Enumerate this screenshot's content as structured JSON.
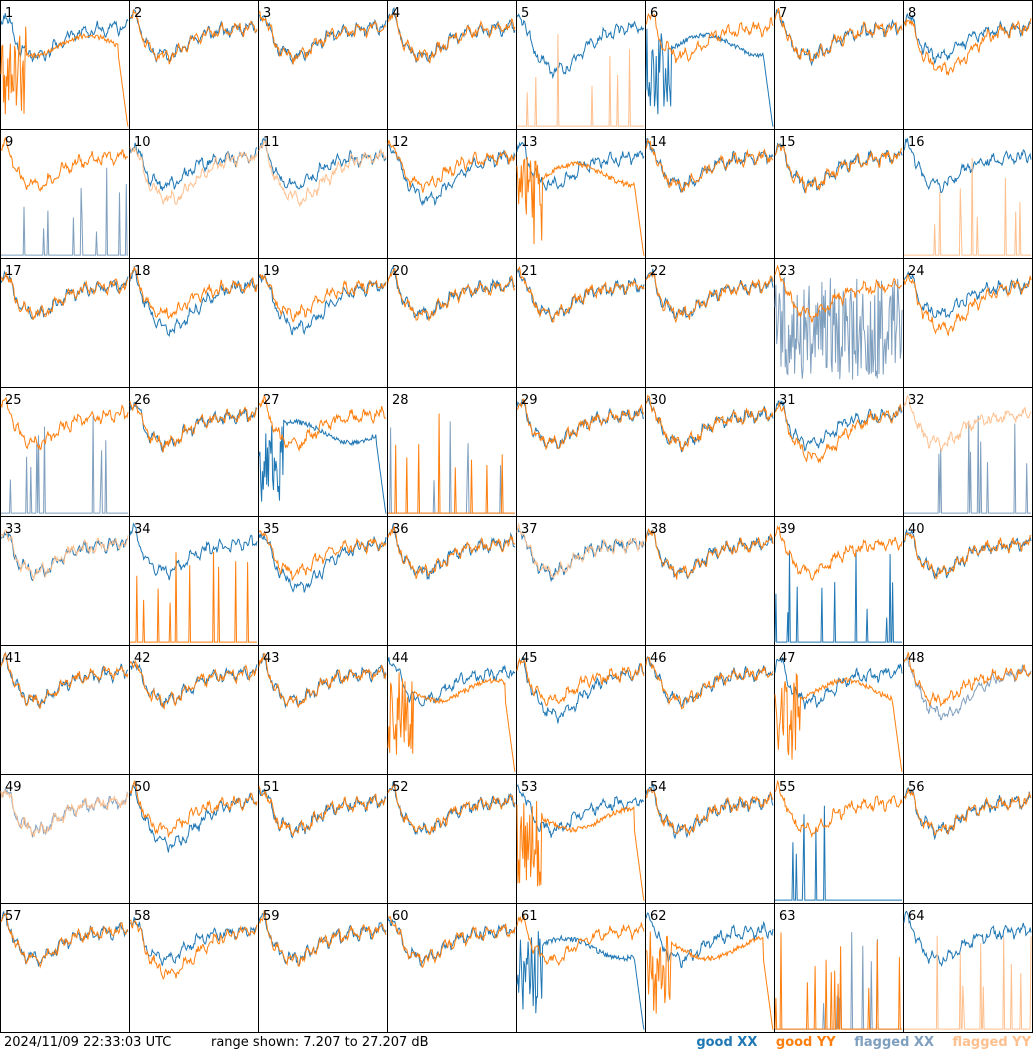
{
  "footer": {
    "timestamp": "2024/11/09 22:33:03 UTC",
    "range_text": "range shown: 7.207 to 27.207 dB"
  },
  "legend": {
    "good_xx": "good XX",
    "good_yy": "good YY",
    "flagged_xx": "flagged XX",
    "flagged_yy": "flagged YY"
  },
  "colors": {
    "good_xx": "#1f77b4",
    "good_yy": "#ff7f0e",
    "flagged_xx": "#7f9fbf",
    "flagged_yy": "#ffc08f",
    "frame": "#000000"
  },
  "chart_data": {
    "type": "line",
    "layout": "8x8 small multiples",
    "y_unit": "dB",
    "ylim": [
      7.207,
      27.207
    ],
    "panels": [
      {
        "label": "1",
        "xx": "good",
        "yy": "good",
        "xx_shape": "normal",
        "yy_shape": "fall"
      },
      {
        "label": "2",
        "xx": "good",
        "yy": "good",
        "xx_shape": "normal",
        "yy_shape": "normal"
      },
      {
        "label": "3",
        "xx": "good",
        "yy": "good",
        "xx_shape": "normal",
        "yy_shape": "normal"
      },
      {
        "label": "4",
        "xx": "good",
        "yy": "good",
        "xx_shape": "normal",
        "yy_shape": "normal"
      },
      {
        "label": "5",
        "xx": "good",
        "yy": "flagged",
        "xx_shape": "dip",
        "yy_shape": "spikes"
      },
      {
        "label": "6",
        "xx": "good",
        "yy": "good",
        "xx_shape": "fall",
        "yy_shape": "normal"
      },
      {
        "label": "7",
        "xx": "good",
        "yy": "good",
        "xx_shape": "normal",
        "yy_shape": "normal"
      },
      {
        "label": "8",
        "xx": "good",
        "yy": "good",
        "xx_shape": "normal",
        "yy_shape": "dip"
      },
      {
        "label": "9",
        "xx": "flagged",
        "yy": "good",
        "xx_shape": "spikes",
        "yy_shape": "normal"
      },
      {
        "label": "10",
        "xx": "good",
        "yy": "flagged",
        "xx_shape": "normal",
        "yy_shape": "dip"
      },
      {
        "label": "11",
        "xx": "good",
        "yy": "flagged",
        "xx_shape": "normal",
        "yy_shape": "dip"
      },
      {
        "label": "12",
        "xx": "good",
        "yy": "good",
        "xx_shape": "dip",
        "yy_shape": "normal"
      },
      {
        "label": "13",
        "xx": "good",
        "yy": "good",
        "xx_shape": "normal",
        "yy_shape": "fall"
      },
      {
        "label": "14",
        "xx": "good",
        "yy": "good",
        "xx_shape": "normal",
        "yy_shape": "normal"
      },
      {
        "label": "15",
        "xx": "good",
        "yy": "good",
        "xx_shape": "normal",
        "yy_shape": "normal"
      },
      {
        "label": "16",
        "xx": "good",
        "yy": "flagged",
        "xx_shape": "normal",
        "yy_shape": "spikes"
      },
      {
        "label": "17",
        "xx": "good",
        "yy": "good",
        "xx_shape": "normal",
        "yy_shape": "normal"
      },
      {
        "label": "18",
        "xx": "good",
        "yy": "good",
        "xx_shape": "dip",
        "yy_shape": "normal"
      },
      {
        "label": "19",
        "xx": "good",
        "yy": "good",
        "xx_shape": "dip",
        "yy_shape": "normal"
      },
      {
        "label": "20",
        "xx": "good",
        "yy": "good",
        "xx_shape": "normal",
        "yy_shape": "normal"
      },
      {
        "label": "21",
        "xx": "good",
        "yy": "good",
        "xx_shape": "normal",
        "yy_shape": "normal"
      },
      {
        "label": "22",
        "xx": "good",
        "yy": "good",
        "xx_shape": "normal",
        "yy_shape": "normal"
      },
      {
        "label": "23",
        "xx": "flagged",
        "yy": "good",
        "xx_shape": "noisy",
        "yy_shape": "normal"
      },
      {
        "label": "24",
        "xx": "good",
        "yy": "good",
        "xx_shape": "normal",
        "yy_shape": "dip"
      },
      {
        "label": "25",
        "xx": "flagged",
        "yy": "good",
        "xx_shape": "spikes",
        "yy_shape": "normal"
      },
      {
        "label": "26",
        "xx": "good",
        "yy": "good",
        "xx_shape": "normal",
        "yy_shape": "normal"
      },
      {
        "label": "27",
        "xx": "good",
        "yy": "good",
        "xx_shape": "fall",
        "yy_shape": "normal"
      },
      {
        "label": "28",
        "xx": "flagged",
        "yy": "good",
        "xx_shape": "spikes",
        "yy_shape": "spikes"
      },
      {
        "label": "29",
        "xx": "good",
        "yy": "good",
        "xx_shape": "normal",
        "yy_shape": "normal"
      },
      {
        "label": "30",
        "xx": "good",
        "yy": "good",
        "xx_shape": "normal",
        "yy_shape": "normal"
      },
      {
        "label": "31",
        "xx": "good",
        "yy": "good",
        "xx_shape": "normal",
        "yy_shape": "dip"
      },
      {
        "label": "32",
        "xx": "flagged",
        "yy": "flagged",
        "xx_shape": "spikes",
        "yy_shape": "normal"
      },
      {
        "label": "33",
        "xx": "good",
        "yy": "flagged",
        "xx_shape": "normal",
        "yy_shape": "normal"
      },
      {
        "label": "34",
        "xx": "good",
        "yy": "good",
        "xx_shape": "normal",
        "yy_shape": "spikes"
      },
      {
        "label": "35",
        "xx": "good",
        "yy": "good",
        "xx_shape": "dip",
        "yy_shape": "normal"
      },
      {
        "label": "36",
        "xx": "good",
        "yy": "good",
        "xx_shape": "normal",
        "yy_shape": "normal"
      },
      {
        "label": "37",
        "xx": "good",
        "yy": "flagged",
        "xx_shape": "normal",
        "yy_shape": "normal"
      },
      {
        "label": "38",
        "xx": "good",
        "yy": "good",
        "xx_shape": "normal",
        "yy_shape": "normal"
      },
      {
        "label": "39",
        "xx": "good",
        "yy": "good",
        "xx_shape": "spikes",
        "yy_shape": "normal"
      },
      {
        "label": "40",
        "xx": "good",
        "yy": "good",
        "xx_shape": "normal",
        "yy_shape": "normal"
      },
      {
        "label": "41",
        "xx": "good",
        "yy": "good",
        "xx_shape": "normal",
        "yy_shape": "normal"
      },
      {
        "label": "42",
        "xx": "good",
        "yy": "good",
        "xx_shape": "normal",
        "yy_shape": "normal"
      },
      {
        "label": "43",
        "xx": "good",
        "yy": "good",
        "xx_shape": "normal",
        "yy_shape": "normal"
      },
      {
        "label": "44",
        "xx": "good",
        "yy": "good",
        "xx_shape": "normal",
        "yy_shape": "fall"
      },
      {
        "label": "45",
        "xx": "good",
        "yy": "good",
        "xx_shape": "dip",
        "yy_shape": "normal"
      },
      {
        "label": "46",
        "xx": "good",
        "yy": "good",
        "xx_shape": "normal",
        "yy_shape": "normal"
      },
      {
        "label": "47",
        "xx": "good",
        "yy": "good",
        "xx_shape": "normal",
        "yy_shape": "fall"
      },
      {
        "label": "48",
        "xx": "flagged",
        "yy": "good",
        "xx_shape": "dip",
        "yy_shape": "normal"
      },
      {
        "label": "49",
        "xx": "flagged",
        "yy": "flagged",
        "xx_shape": "normal",
        "yy_shape": "normal"
      },
      {
        "label": "50",
        "xx": "good",
        "yy": "good",
        "xx_shape": "dip",
        "yy_shape": "normal"
      },
      {
        "label": "51",
        "xx": "good",
        "yy": "good",
        "xx_shape": "normal",
        "yy_shape": "normal"
      },
      {
        "label": "52",
        "xx": "good",
        "yy": "good",
        "xx_shape": "normal",
        "yy_shape": "normal"
      },
      {
        "label": "53",
        "xx": "good",
        "yy": "good",
        "xx_shape": "normal",
        "yy_shape": "fall"
      },
      {
        "label": "54",
        "xx": "good",
        "yy": "good",
        "xx_shape": "normal",
        "yy_shape": "normal"
      },
      {
        "label": "55",
        "xx": "good",
        "yy": "good",
        "xx_shape": "spikes",
        "yy_shape": "normal"
      },
      {
        "label": "56",
        "xx": "good",
        "yy": "good",
        "xx_shape": "normal",
        "yy_shape": "normal"
      },
      {
        "label": "57",
        "xx": "good",
        "yy": "good",
        "xx_shape": "normal",
        "yy_shape": "normal"
      },
      {
        "label": "58",
        "xx": "good",
        "yy": "good",
        "xx_shape": "normal",
        "yy_shape": "dip"
      },
      {
        "label": "59",
        "xx": "good",
        "yy": "good",
        "xx_shape": "normal",
        "yy_shape": "normal"
      },
      {
        "label": "60",
        "xx": "good",
        "yy": "good",
        "xx_shape": "normal",
        "yy_shape": "normal"
      },
      {
        "label": "61",
        "xx": "good",
        "yy": "good",
        "xx_shape": "fall",
        "yy_shape": "normal"
      },
      {
        "label": "62",
        "xx": "good",
        "yy": "good",
        "xx_shape": "normal",
        "yy_shape": "fall"
      },
      {
        "label": "63",
        "xx": "flagged",
        "yy": "good",
        "xx_shape": "spikes",
        "yy_shape": "spikes"
      },
      {
        "label": "64",
        "xx": "good",
        "yy": "flagged",
        "xx_shape": "normal",
        "yy_shape": "spikes"
      }
    ]
  }
}
